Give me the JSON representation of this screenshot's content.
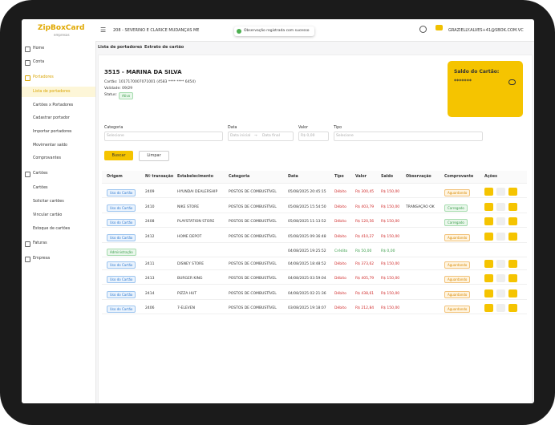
{
  "header": {
    "logo": "ZipBoxCard",
    "logo_sub": "empresas",
    "company": "208 - SEVERINO E CLARICE MUDANÇAS ME",
    "toast": "Observação registrada com sucesso",
    "user": "GRAZIELLY.ALVES+41@SBOK.COM.VC"
  },
  "sidebar": [
    {
      "label": "Home"
    },
    {
      "label": "Conta"
    },
    {
      "label": "Portadores",
      "active": true
    },
    {
      "label": "Lista de portadores",
      "sub": true,
      "selected": true
    },
    {
      "label": "Cartões x Portadores",
      "sub": true
    },
    {
      "label": "Cadastrar portador",
      "sub": true
    },
    {
      "label": "Importar portadores",
      "sub": true
    },
    {
      "label": "Movimentar saldo",
      "sub": true
    },
    {
      "label": "Comprovantes",
      "sub": true
    },
    {
      "label": "Cartões"
    },
    {
      "label": "Cartões",
      "sub": true
    },
    {
      "label": "Solicitar cartões",
      "sub": true
    },
    {
      "label": "Vincular cartão",
      "sub": true
    },
    {
      "label": "Estoque de cartões",
      "sub": true
    },
    {
      "label": "Faturas"
    },
    {
      "label": "Empresa"
    }
  ],
  "breadcrumb": [
    "Lista de portadores",
    "/",
    "Extrato de cartão"
  ],
  "card": {
    "name": "3515 - MARINA DA SILVA",
    "number": "Cartão: 1017170007071001 (4583 **** **** 6454)",
    "validity": "Validade: 09/29",
    "status_label": "Status:",
    "status": "Ativo",
    "balance_label": "Saldo do Cartão:",
    "balance": "*******"
  },
  "filters": {
    "labels": [
      "Categoria",
      "Data",
      "Valor",
      "Tipo"
    ],
    "category_placeholder": "Selecione",
    "date_from": "Data inicial",
    "date_sep": "→",
    "date_to": "Data final",
    "value_placeholder": "R$ 0,00",
    "type_placeholder": "Selecione",
    "search": "Buscar",
    "clear": "Limpar"
  },
  "table": {
    "columns": [
      "Origem",
      "Nº transação",
      "Estabelecimento",
      "Categoria",
      "Data",
      "Tipo",
      "Valor",
      "Saldo",
      "Observação",
      "Comprovante",
      "Ações"
    ],
    "rows": [
      {
        "origin": "Uso do Cartão",
        "id": "2409",
        "merchant": "HYUNDAI DEALERSHIP",
        "category": "POSTOS DE COMBUSTÍVEL",
        "date": "05/08/2025 20:45:15",
        "type": "Débito",
        "value": "R$ 300,45",
        "balance": "R$ 150,00",
        "receipt": "Aguardando"
      },
      {
        "origin": "Uso do Cartão",
        "id": "2410",
        "merchant": "NIKE STORE",
        "category": "POSTOS DE COMBUSTÍVEL",
        "date": "05/08/2025 15:54:50",
        "type": "Débito",
        "value": "R$ 403,79",
        "balance": "R$ 150,00",
        "note": "TRANSAÇÃO OK",
        "receipt": "Carregado"
      },
      {
        "origin": "Uso do Cartão",
        "id": "2408",
        "merchant": "PLAYSTATION STORE",
        "category": "POSTOS DE COMBUSTÍVEL",
        "date": "05/08/2025 11:13:52",
        "type": "Débito",
        "value": "R$ 120,56",
        "balance": "R$ 150,00",
        "receipt": "Carregado"
      },
      {
        "origin": "Uso do Cartão",
        "id": "2412",
        "merchant": "HOME DEPOT",
        "category": "POSTOS DE COMBUSTÍVEL",
        "date": "05/08/2025 09:36:48",
        "type": "Débito",
        "value": "R$ 410,27",
        "balance": "R$ 150,00",
        "receipt": "Aguardando"
      },
      {
        "origin": "Administração",
        "date": "04/08/2025 19:25:52",
        "type": "Crédito",
        "value": "R$ 50,00",
        "balance": "R$ 0,00"
      },
      {
        "origin": "Uso do Cartão",
        "id": "2411",
        "merchant": "DISNEY STORE",
        "category": "POSTOS DE COMBUSTÍVEL",
        "date": "04/08/2025 18:48:52",
        "type": "Débito",
        "value": "R$ 373,62",
        "balance": "R$ 150,00",
        "receipt": "Aguardando"
      },
      {
        "origin": "Uso do Cartão",
        "id": "2413",
        "merchant": "BURGER KING",
        "category": "POSTOS DE COMBUSTÍVEL",
        "date": "04/08/2025 03:59:04",
        "type": "Débito",
        "value": "R$ 405,79",
        "balance": "R$ 150,00",
        "receipt": "Aguardando"
      },
      {
        "origin": "Uso do Cartão",
        "id": "2414",
        "merchant": "PIZZA HUT",
        "category": "POSTOS DE COMBUSTÍVEL",
        "date": "04/08/2025 02:21:36",
        "type": "Débito",
        "value": "R$ 438,61",
        "balance": "R$ 150,00",
        "receipt": "Aguardando"
      },
      {
        "origin": "Uso do Cartão",
        "id": "2406",
        "merchant": "7-ELEVEN",
        "category": "POSTOS DE COMBUSTÍVEL",
        "date": "03/08/2025 19:18:07",
        "type": "Débito",
        "value": "R$ 212,84",
        "balance": "R$ 150,00",
        "receipt": "Aguardando"
      }
    ]
  }
}
